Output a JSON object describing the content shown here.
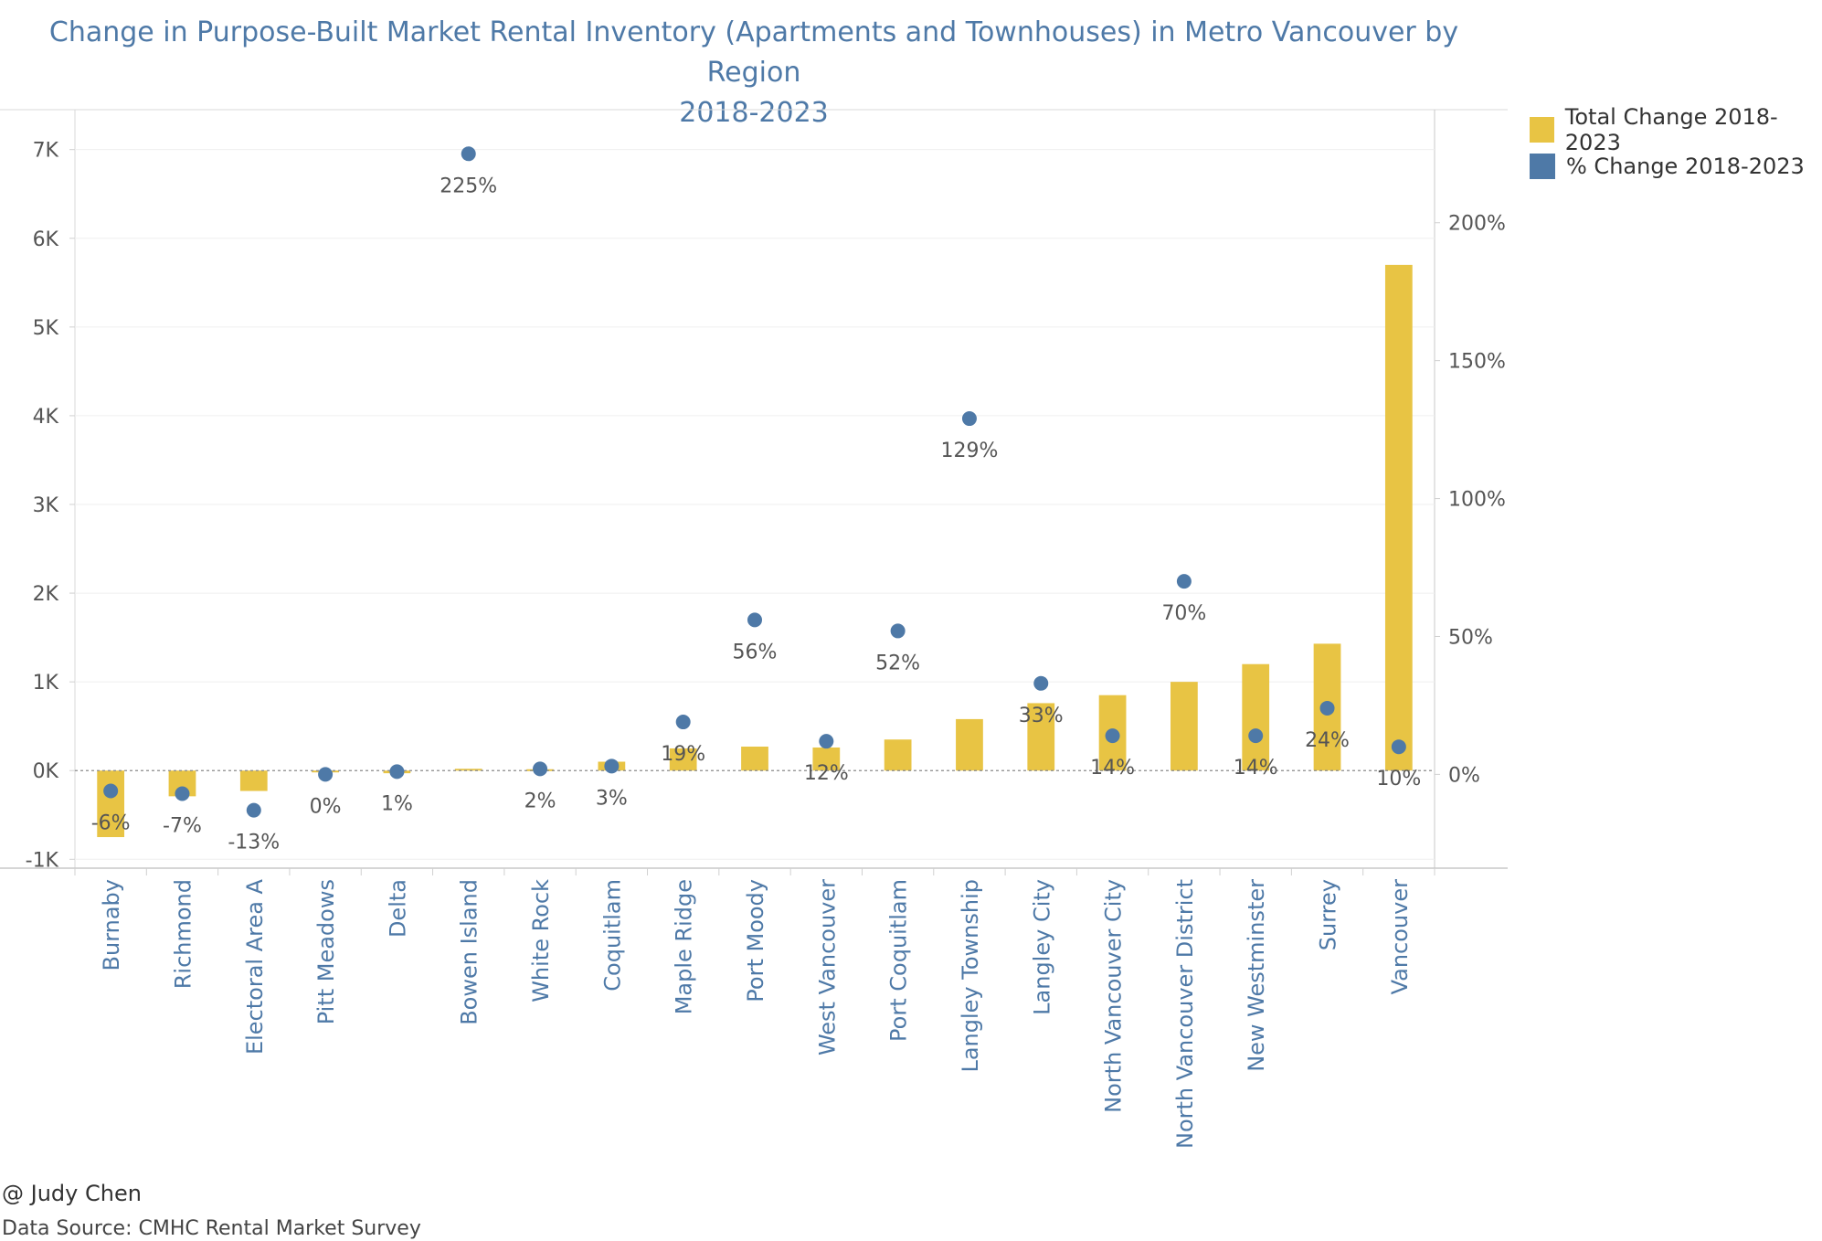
{
  "title_line1": "Change in Purpose-Built Market Rental Inventory (Apartments and Townhouses) in Metro Vancouver by Region",
  "title_line2": "2018-2023",
  "legend": [
    {
      "label": "Total Change 2018-2023",
      "color": "#e8c444"
    },
    {
      "label": "% Change 2018-2023",
      "color": "#4e79a7"
    }
  ],
  "footer": {
    "credit": "@ Judy Chen",
    "source": "Data Source: CMHC Rental Market Survey"
  },
  "chart_data": {
    "type": "bar",
    "categories": [
      "Burnaby",
      "Richmond",
      "Electoral Area A",
      "Pitt Meadows",
      "Delta",
      "Bowen Island",
      "White Rock",
      "Coquitlam",
      "Maple Ridge",
      "Port Moody",
      "West Vancouver",
      "Port Coquitlam",
      "Langley Township",
      "Langley City",
      "North Vancouver City",
      "North Vancouver District",
      "New Westminster",
      "Surrey",
      "Vancouver"
    ],
    "series": [
      {
        "name": "Total Change 2018-2023",
        "type": "bar",
        "axis": "left",
        "color": "#e8c444",
        "values": [
          -750,
          -290,
          -230,
          -10,
          -30,
          20,
          15,
          100,
          250,
          270,
          260,
          350,
          580,
          760,
          850,
          1000,
          1200,
          1430,
          5700
        ]
      },
      {
        "name": "% Change 2018-2023",
        "type": "scatter",
        "axis": "right",
        "color": "#4e79a7",
        "values": [
          -6,
          -7,
          -13,
          0,
          1,
          225,
          2,
          3,
          19,
          56,
          12,
          52,
          129,
          33,
          14,
          70,
          14,
          24,
          10
        ],
        "labels": [
          "-6%",
          "-7%",
          "-13%",
          "0%",
          "1%",
          "225%",
          "2%",
          "3%",
          "19%",
          "56%",
          "12%",
          "52%",
          "129%",
          "33%",
          "14%",
          "70%",
          "14%",
          "24%",
          "10%"
        ]
      }
    ],
    "y_left": {
      "ticks": [
        -1000,
        0,
        1000,
        2000,
        3000,
        4000,
        5000,
        6000,
        7000
      ],
      "tick_labels": [
        "-1K",
        "0K",
        "1K",
        "2K",
        "3K",
        "4K",
        "5K",
        "6K",
        "7K"
      ],
      "ylim": [
        -1100,
        7450
      ]
    },
    "y_right": {
      "ticks": [
        0,
        50,
        100,
        150,
        200
      ],
      "tick_labels": [
        "0%",
        "50%",
        "100%",
        "150%",
        "200%"
      ],
      "ylim": [
        -34,
        241
      ]
    },
    "grid": true,
    "legend_position": "top-right"
  }
}
